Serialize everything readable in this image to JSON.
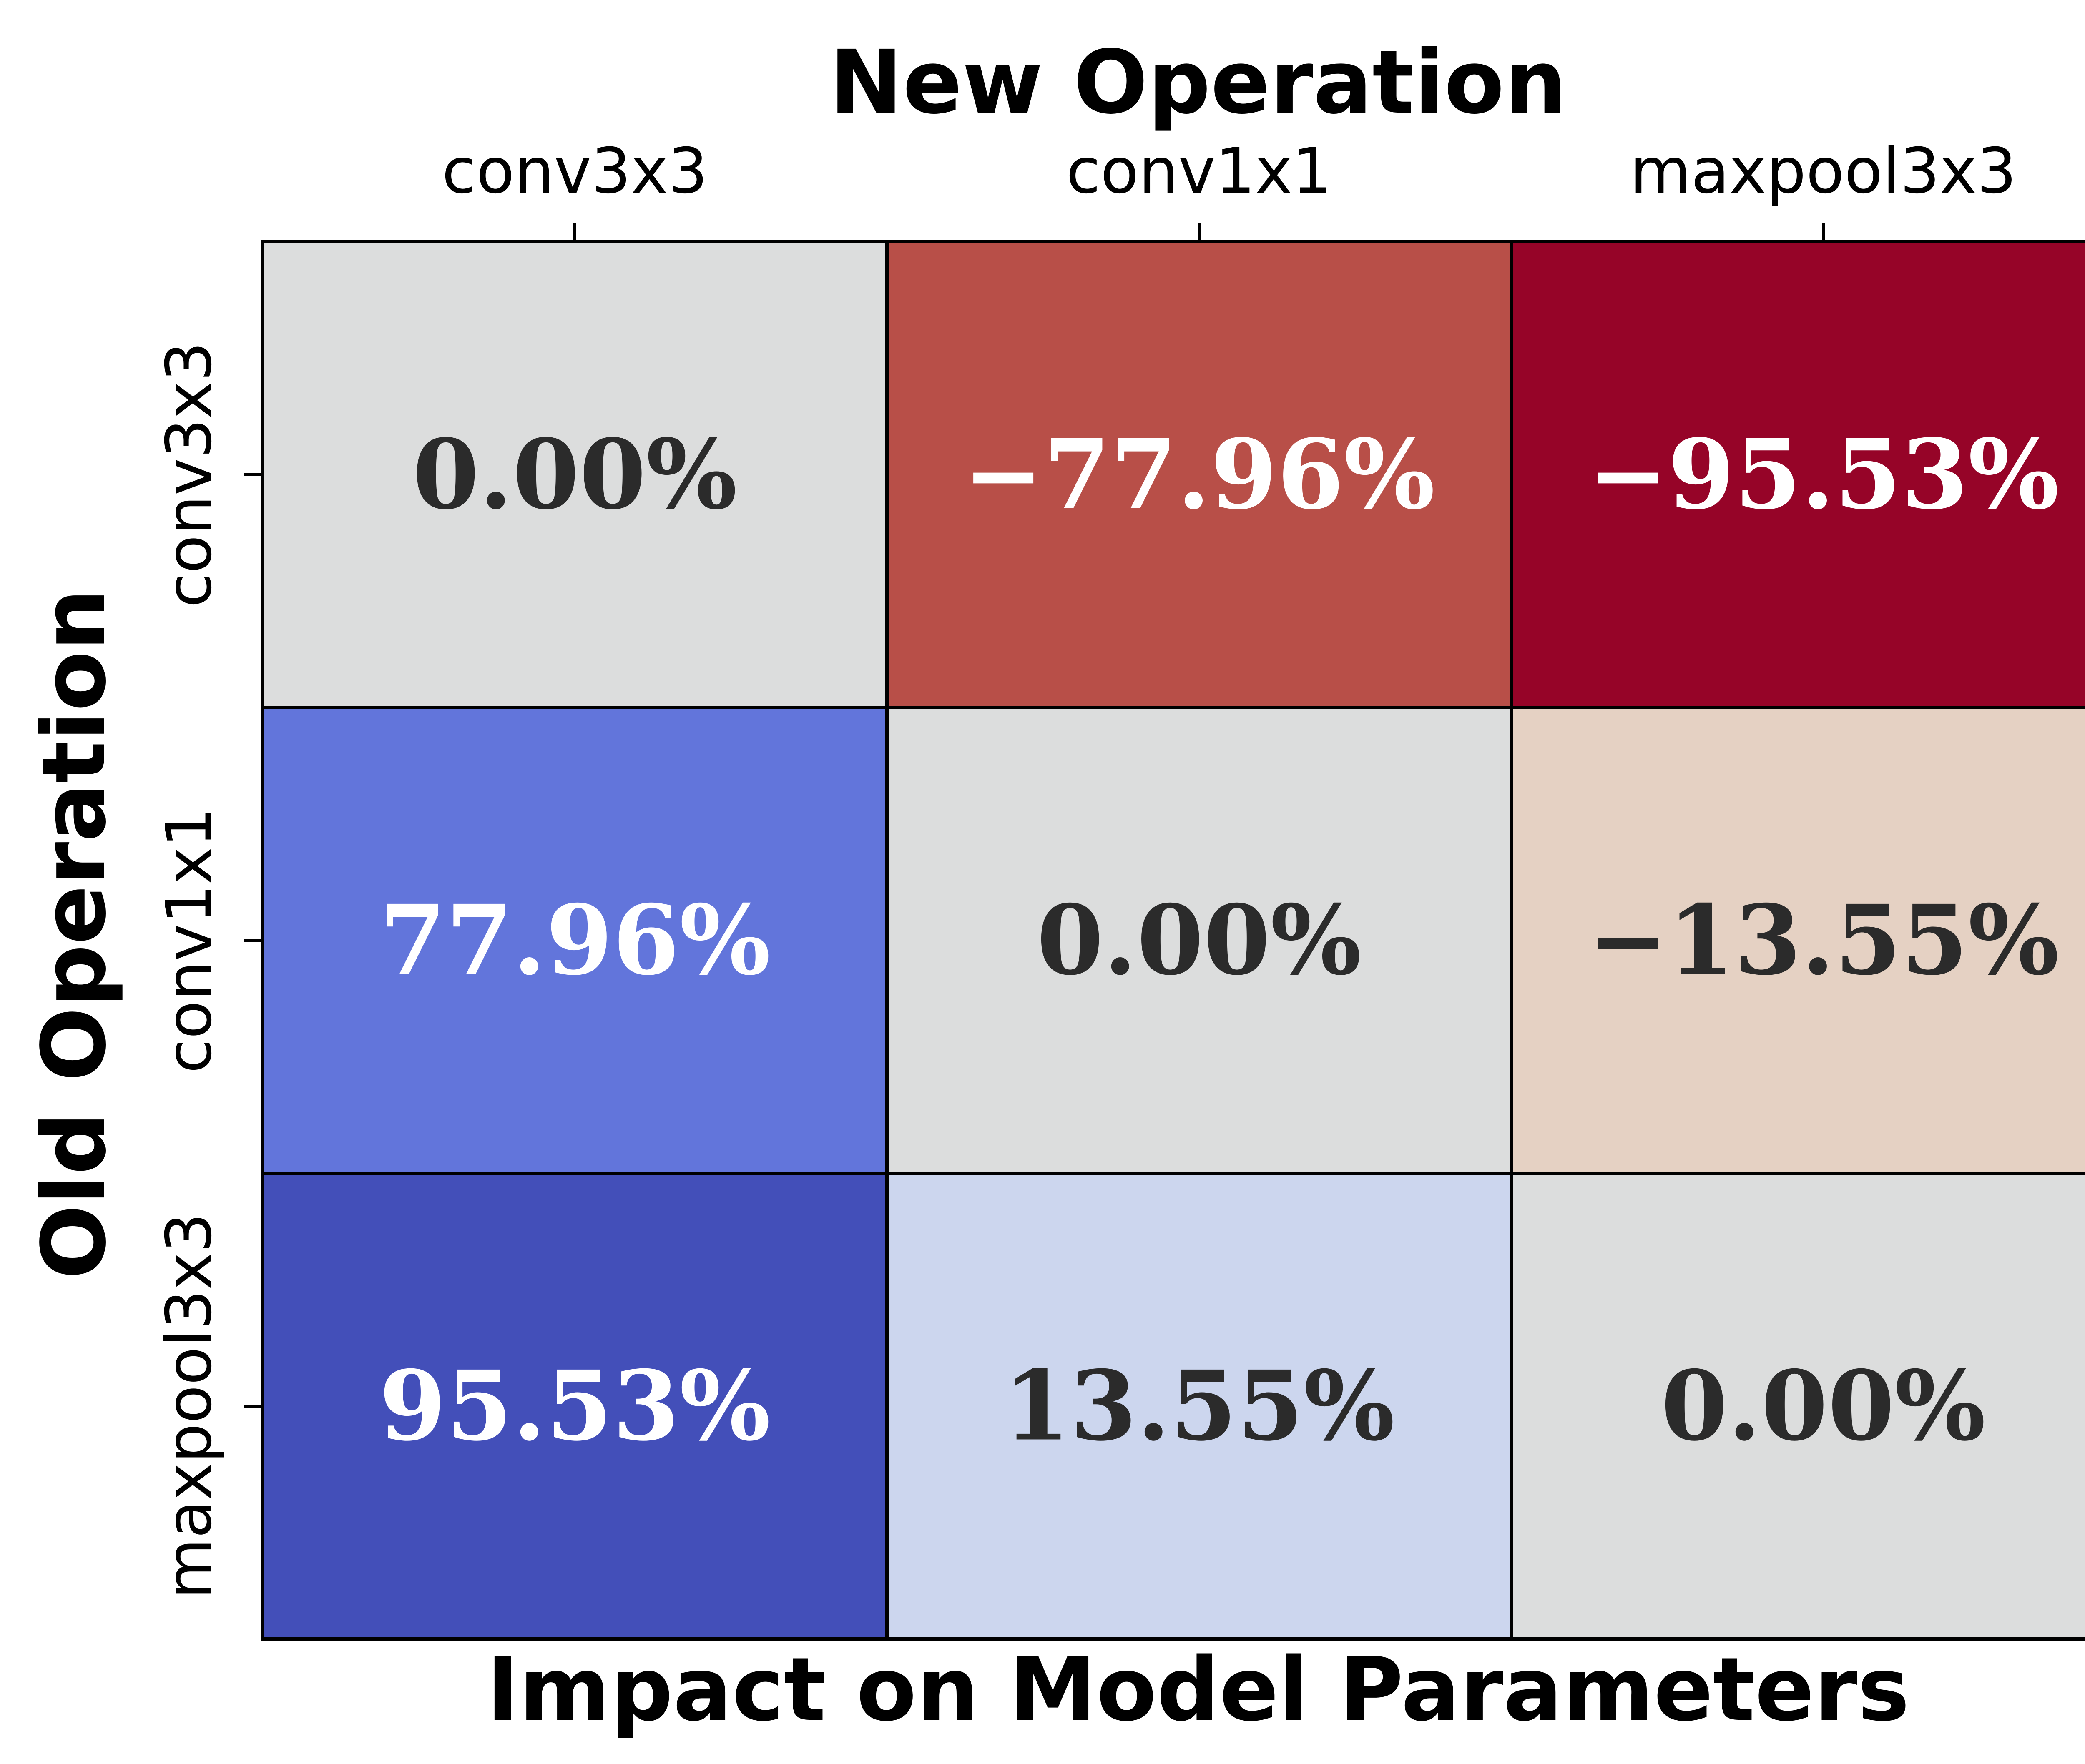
{
  "chart_data": {
    "type": "heatmap",
    "title": "New Operation",
    "xlabel": "Impact on Model Parameters",
    "ylabel": "Old Operation",
    "x_categories": [
      "conv3x3",
      "conv1x1",
      "maxpool3x3"
    ],
    "y_categories": [
      "conv3x3",
      "conv1x1",
      "maxpool3x3"
    ],
    "values": [
      [
        0.0,
        -77.96,
        -95.53
      ],
      [
        77.96,
        0.0,
        -13.55
      ],
      [
        95.53,
        13.55,
        0.0
      ]
    ],
    "cell_labels": [
      [
        "0.00%",
        "−77.96%",
        "−95.53%"
      ],
      [
        "77.96%",
        "0.00%",
        "−13.55%"
      ],
      [
        "95.53%",
        "13.55%",
        "0.00%"
      ]
    ],
    "cell_colors": [
      [
        "#dcdddd",
        "#b84f48",
        "#960428"
      ],
      [
        "#6275db",
        "#dcdddd",
        "#e5d1c3"
      ],
      [
        "#434fb9",
        "#ccd6ee",
        "#dcdddd"
      ]
    ],
    "label_colors": [
      [
        "#2b2b2b",
        "#ffffff",
        "#ffffff"
      ],
      [
        "#ffffff",
        "#2b2b2b",
        "#2b2b2b"
      ],
      [
        "#ffffff",
        "#2b2b2b",
        "#2b2b2b"
      ]
    ],
    "colormap": "coolwarm",
    "colorbar": false,
    "grid": false
  }
}
